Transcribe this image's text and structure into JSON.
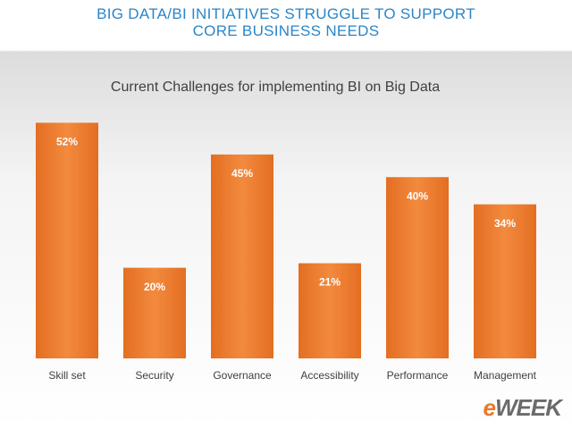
{
  "slide_title": [
    "BIG DATA/BI INITIATIVES STRUGGLE TO SUPPORT",
    "CORE BUSINESS NEEDS"
  ],
  "chart_data": {
    "type": "bar",
    "title": "Current Challenges for implementing BI on Big Data",
    "categories": [
      "Skill set",
      "Security",
      "Governance",
      "Accessibility",
      "Performance",
      "Management"
    ],
    "values": [
      52,
      20,
      45,
      21,
      40,
      34
    ],
    "value_labels": [
      "52%",
      "20%",
      "45%",
      "21%",
      "40%",
      "34%"
    ],
    "color": "#ee7d2f"
  },
  "logo": "eWEEK"
}
